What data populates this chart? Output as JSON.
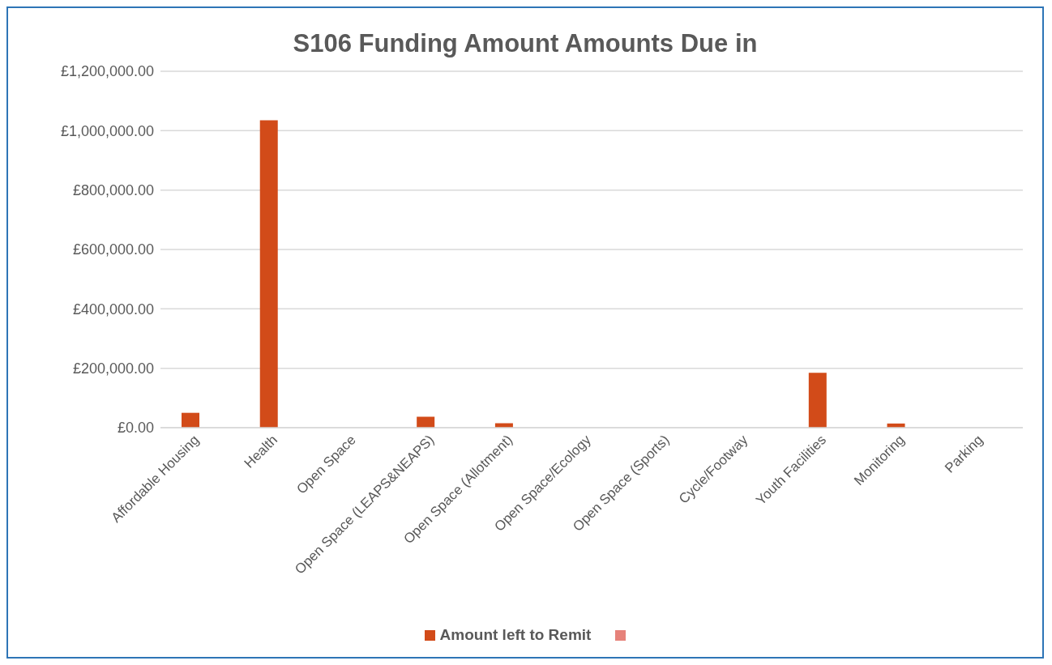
{
  "chart_data": {
    "type": "bar",
    "title": "S106 Funding Amount Amounts Due in",
    "categories": [
      "Affordable Housing",
      "Health",
      "Open Space",
      "Open Space (LEAPS&NEAPS)",
      "Open Space (Allotment)",
      "Open Space/Ecology",
      "Open Space (Sports)",
      "Cycle/Footway",
      "Youth Facilities",
      "Monitoring",
      "Parking"
    ],
    "series": [
      {
        "name": "Amount left to Remit",
        "color": "#d24b19",
        "values": [
          50000,
          1035000,
          null,
          37000,
          15000,
          null,
          null,
          null,
          185000,
          14000,
          null
        ]
      },
      {
        "color": "#e6827a",
        "values": [
          null,
          null,
          null,
          null,
          null,
          null,
          null,
          null,
          null,
          null,
          null
        ]
      }
    ],
    "ylim": [
      0,
      1200000
    ],
    "yticks": [
      {
        "value": 0,
        "label": "£0.00"
      },
      {
        "value": 200000,
        "label": "£200,000.00"
      },
      {
        "value": 400000,
        "label": "£400,000.00"
      },
      {
        "value": 600000,
        "label": "£600,000.00"
      },
      {
        "value": 800000,
        "label": "£800,000.00"
      },
      {
        "value": 1000000,
        "label": "£1,000,000.00"
      },
      {
        "value": 1200000,
        "label": "£1,200,000.00"
      }
    ],
    "grid": "y",
    "legend": "bottom"
  }
}
